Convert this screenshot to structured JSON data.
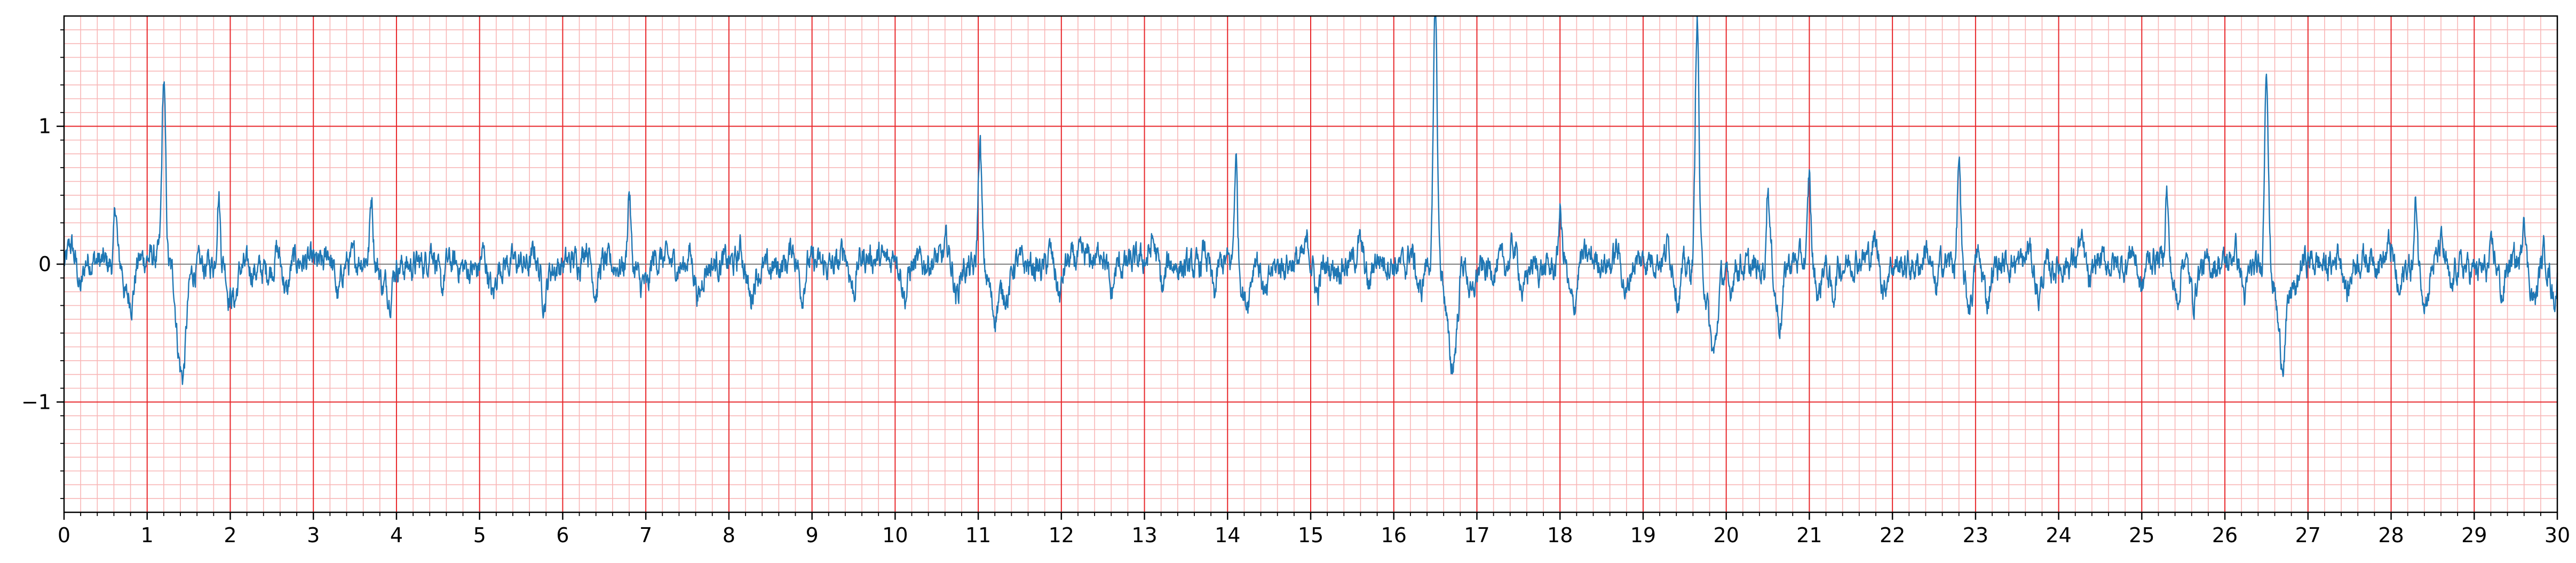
{
  "chart_data": {
    "type": "line",
    "title": "",
    "xlabel": "",
    "ylabel": "",
    "xlim": [
      0,
      30
    ],
    "ylim": [
      -1.8,
      1.8
    ],
    "x_ticks": [
      "0",
      "1",
      "2",
      "3",
      "4",
      "5",
      "6",
      "7",
      "8",
      "9",
      "10",
      "11",
      "12",
      "13",
      "14",
      "15",
      "16",
      "17",
      "18",
      "19",
      "20",
      "21",
      "22",
      "23",
      "24",
      "25",
      "26",
      "27",
      "28",
      "29",
      "30"
    ],
    "y_ticks": [
      {
        "value": 1,
        "label": "1"
      },
      {
        "value": 0,
        "label": "0"
      },
      {
        "value": -1,
        "label": "−1"
      }
    ],
    "grid": {
      "major": 1.0,
      "minor": 0.2,
      "major_y": 1.0,
      "minor_y": 0.1,
      "major_color": "#e8262a",
      "minor_color": "#f8b6b6"
    },
    "line_color": "#1f77b4",
    "zero_line_color": "#808080",
    "beats": [
      {
        "t": 1.2,
        "amp": 1.3,
        "s_depth": -0.65
      },
      {
        "t": 11.02,
        "amp": 0.92,
        "s_depth": -0.4
      },
      {
        "t": 16.5,
        "amp": 1.85,
        "s_depth": -0.75
      },
      {
        "t": 19.65,
        "amp": 1.85,
        "s_depth": -0.65
      },
      {
        "t": 26.5,
        "amp": 1.55,
        "s_depth": -0.7
      }
    ],
    "secondary_peaks": [
      {
        "t": 0.62,
        "amp": 0.42
      },
      {
        "t": 1.86,
        "amp": 0.52
      },
      {
        "t": 3.7,
        "amp": 0.45
      },
      {
        "t": 6.8,
        "amp": 0.55
      },
      {
        "t": 14.1,
        "amp": 0.78
      },
      {
        "t": 18.0,
        "amp": 0.4
      },
      {
        "t": 20.5,
        "amp": 0.6
      },
      {
        "t": 21.0,
        "amp": 0.62
      },
      {
        "t": 22.8,
        "amp": 0.78
      },
      {
        "t": 25.3,
        "amp": 0.52
      },
      {
        "t": 28.3,
        "amp": 0.45
      },
      {
        "t": 29.6,
        "amp": 0.42
      }
    ]
  }
}
